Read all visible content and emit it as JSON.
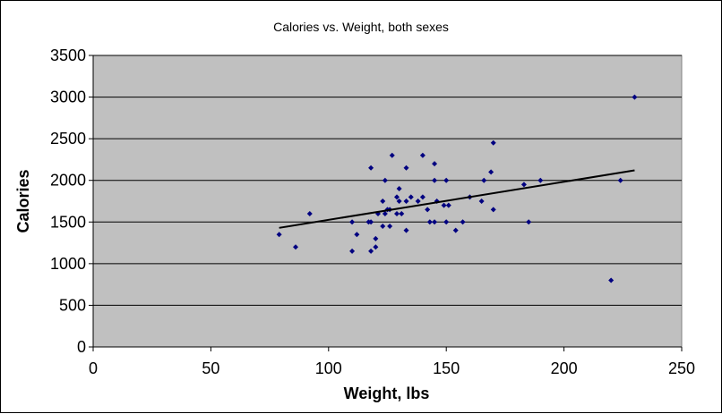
{
  "chart_data": {
    "type": "scatter",
    "title": "Calories vs. Weight, both sexes",
    "xlabel": "Weight, lbs",
    "ylabel": "Calories",
    "xlim": [
      0,
      250
    ],
    "ylim": [
      0,
      3500
    ],
    "x_ticks": [
      0,
      50,
      100,
      150,
      200,
      250
    ],
    "y_ticks": [
      0,
      500,
      1000,
      1500,
      2000,
      2500,
      3000,
      3500
    ],
    "grid": "horizontal",
    "legend": "none",
    "colors": {
      "plot_background": "#c0c0c0",
      "marker": "#000080",
      "trendline": "#000000",
      "gridline": "#000000"
    },
    "trendline": {
      "x": [
        79,
        230
      ],
      "y": [
        1430,
        2120
      ]
    },
    "series": [
      {
        "points": [
          [
            79,
            1350
          ],
          [
            86,
            1200
          ],
          [
            92,
            1600
          ],
          [
            110,
            1500
          ],
          [
            110,
            1150
          ],
          [
            112,
            1350
          ],
          [
            117,
            1500
          ],
          [
            118,
            1150
          ],
          [
            118,
            1500
          ],
          [
            118,
            2150
          ],
          [
            120,
            1200
          ],
          [
            120,
            1300
          ],
          [
            121,
            1600
          ],
          [
            123,
            1750
          ],
          [
            123,
            1450
          ],
          [
            124,
            2000
          ],
          [
            124,
            1600
          ],
          [
            125,
            1650
          ],
          [
            126,
            1450
          ],
          [
            126,
            1650
          ],
          [
            127,
            2300
          ],
          [
            129,
            1600
          ],
          [
            129,
            1800
          ],
          [
            130,
            1750
          ],
          [
            130,
            1900
          ],
          [
            131,
            1600
          ],
          [
            133,
            1750
          ],
          [
            133,
            1400
          ],
          [
            133,
            2150
          ],
          [
            135,
            1800
          ],
          [
            138,
            1750
          ],
          [
            140,
            2300
          ],
          [
            140,
            1800
          ],
          [
            142,
            1650
          ],
          [
            143,
            1500
          ],
          [
            145,
            1500
          ],
          [
            145,
            2000
          ],
          [
            145,
            2200
          ],
          [
            146,
            1750
          ],
          [
            149,
            1700
          ],
          [
            150,
            1500
          ],
          [
            150,
            2000
          ],
          [
            151,
            1700
          ],
          [
            154,
            1400
          ],
          [
            157,
            1500
          ],
          [
            160,
            1800
          ],
          [
            165,
            1750
          ],
          [
            166,
            2000
          ],
          [
            169,
            2100
          ],
          [
            170,
            2450
          ],
          [
            170,
            1650
          ],
          [
            183,
            1950
          ],
          [
            185,
            1500
          ],
          [
            190,
            2000
          ],
          [
            220,
            800
          ],
          [
            224,
            2000
          ],
          [
            230,
            3000
          ]
        ]
      }
    ]
  }
}
